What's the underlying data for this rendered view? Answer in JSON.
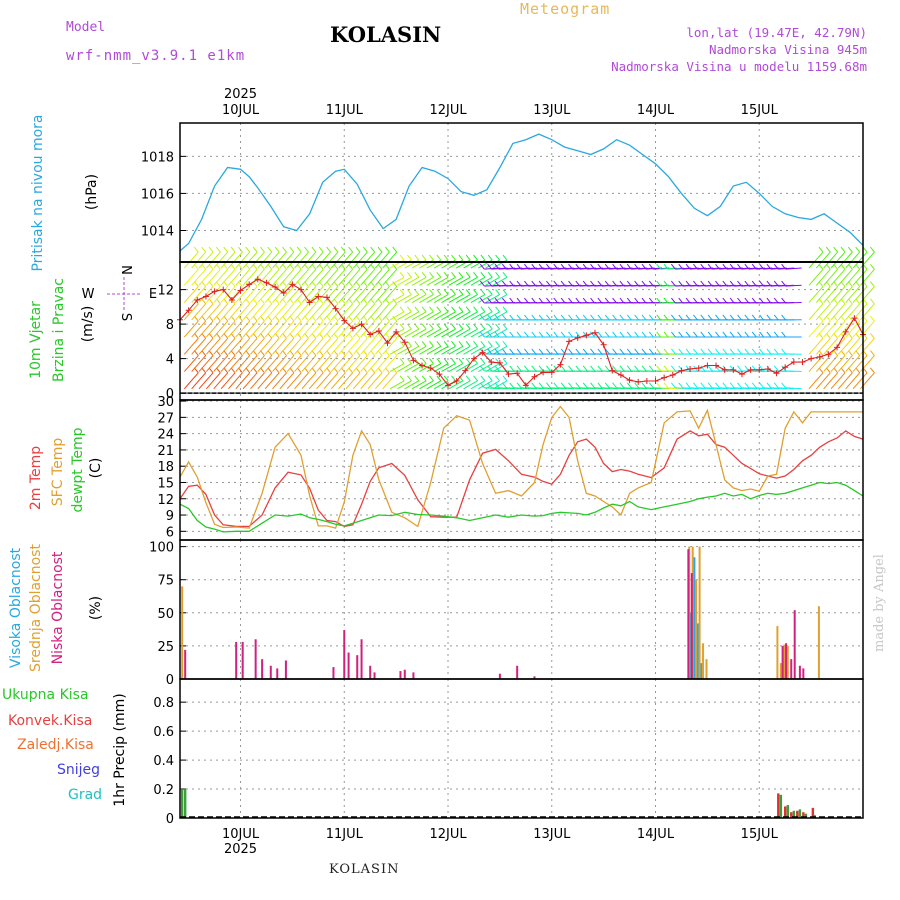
{
  "header": {
    "model_label": "Model",
    "model_name": "wrf-nmm_v3.9.1 e1km",
    "title": "KOLASIN",
    "meteogram": "Meteogram",
    "lonlat": "lon,lat (19.47E, 42.79N)",
    "altitude": "Nadmorska Visina 945m",
    "altitude_model": "Nadmorska Visina u modelu 1159.68m"
  },
  "footer": "KOLASIN",
  "watermark": "made by Angel",
  "time_axis": {
    "year": "2025",
    "days": [
      "10JUL",
      "11JUL",
      "12JUL",
      "13JUL",
      "14JUL",
      "15JUL"
    ],
    "start_hour_before_first_day": -14,
    "end_hour_after_first_day": 144
  },
  "colors": {
    "pressure": "#2aa8e0",
    "temp2m": "#e84040",
    "sfc_temp": "#e0a030",
    "dewpt": "#28c828",
    "wind_speed_line": "#e02020",
    "high_cloud": "#2aa8e0",
    "mid_cloud": "#e0a030",
    "low_cloud": "#d02080",
    "precip_total": "#3aa03a",
    "precip_conv": "#e03030",
    "grid": "#999999"
  },
  "chart_data": [
    {
      "type": "line",
      "panel": "pressure",
      "ylabel_parts": [
        "Pritisak na nivou mora"
      ],
      "unit": "(hPa)",
      "yticks": [
        1014,
        1016,
        1018
      ],
      "ylim": [
        1012.3,
        1019.8
      ],
      "series": [
        {
          "x": [
            -14,
            -12,
            -9,
            -6,
            -3,
            0,
            2,
            4,
            7,
            10,
            13,
            16,
            19,
            22,
            24,
            27,
            30,
            33,
            36,
            39,
            42,
            45,
            48,
            51,
            54,
            57,
            60,
            63,
            66,
            69,
            72,
            75,
            78,
            81,
            84,
            87,
            90,
            93,
            96,
            99,
            102,
            105,
            108,
            111,
            114,
            117,
            120,
            123,
            126,
            129,
            132,
            135,
            138,
            141,
            144
          ],
          "values": [
            1012.9,
            1013.3,
            1014.6,
            1016.4,
            1017.4,
            1017.3,
            1016.9,
            1016.3,
            1015.3,
            1014.2,
            1014.0,
            1014.9,
            1016.6,
            1017.2,
            1017.3,
            1016.5,
            1015.1,
            1014.1,
            1014.6,
            1016.4,
            1017.4,
            1017.2,
            1016.8,
            1016.1,
            1015.9,
            1016.2,
            1017.4,
            1018.7,
            1018.9,
            1019.2,
            1018.9,
            1018.5,
            1018.3,
            1018.1,
            1018.4,
            1018.9,
            1018.6,
            1018.1,
            1017.6,
            1016.9,
            1016.0,
            1015.2,
            1014.8,
            1015.3,
            1016.4,
            1016.6,
            1016.0,
            1015.3,
            1014.9,
            1014.7,
            1014.6,
            1014.9,
            1014.4,
            1013.9,
            1013.2
          ]
        }
      ]
    },
    {
      "type": "line",
      "panel": "wind",
      "ylabel_parts": [
        "10m Vjetar",
        "Brzina i Pravac"
      ],
      "unit": "(m/s)",
      "compass": [
        "N",
        "E",
        "W",
        "S"
      ],
      "yticks": [
        0,
        4,
        8,
        12
      ],
      "ylim": [
        -0.8,
        15.2
      ],
      "series": [
        {
          "name": "wind speed",
          "x": [
            -14,
            -12,
            -10,
            -8,
            -6,
            -4,
            -2,
            0,
            2,
            4,
            6,
            8,
            10,
            12,
            14,
            16,
            18,
            20,
            22,
            24,
            26,
            28,
            30,
            32,
            34,
            36,
            38,
            40,
            42,
            44,
            46,
            48,
            50,
            52,
            54,
            56,
            58,
            60,
            62,
            64,
            66,
            68,
            70,
            72,
            74,
            76,
            78,
            80,
            82,
            84,
            86,
            88,
            90,
            92,
            94,
            96,
            98,
            100,
            102,
            104,
            106,
            108,
            110,
            112,
            114,
            116,
            118,
            120,
            122,
            124,
            126,
            128,
            130,
            132,
            134,
            136,
            138,
            140,
            142,
            144
          ],
          "values": [
            8.5,
            9.6,
            10.8,
            11.2,
            11.8,
            12.0,
            10.8,
            11.9,
            12.6,
            13.2,
            12.8,
            12.3,
            11.6,
            12.6,
            12.0,
            10.5,
            11.2,
            11.1,
            9.8,
            8.4,
            7.5,
            8.0,
            6.8,
            7.2,
            5.8,
            7.1,
            5.9,
            3.8,
            3.2,
            2.9,
            2.2,
            0.9,
            1.4,
            2.6,
            4.0,
            4.7,
            3.6,
            3.5,
            2.2,
            2.3,
            0.9,
            1.9,
            2.4,
            2.4,
            3.3,
            6.0,
            6.4,
            6.7,
            7.0,
            5.6,
            2.6,
            2.1,
            1.5,
            1.3,
            1.4,
            1.4,
            1.8,
            2.1,
            2.6,
            2.8,
            2.9,
            3.2,
            3.2,
            2.7,
            2.7,
            2.2,
            2.7,
            2.7,
            2.8,
            2.3,
            3.0,
            3.6,
            3.6,
            4.0,
            4.2,
            4.5,
            5.3,
            7.1,
            8.7,
            6.8
          ]
        }
      ]
    },
    {
      "type": "line",
      "panel": "temperature",
      "ylabel_parts": [
        "2m Temp",
        "SFC Temp",
        "dewpt Temp"
      ],
      "unit": "(C)",
      "yticks": [
        6,
        9,
        12,
        15,
        18,
        21,
        24,
        27,
        30
      ],
      "ylim": [
        4.4,
        30.2
      ],
      "series": [
        {
          "name": "2m Temp",
          "x": [
            -14,
            -12,
            -10,
            -8,
            -6,
            -4,
            -1,
            2,
            5,
            8,
            11,
            14,
            16,
            18,
            20,
            22,
            24,
            26,
            28,
            30,
            32,
            35,
            38,
            41,
            44,
            47,
            50,
            53,
            56,
            59,
            62,
            65,
            68,
            70,
            72,
            74,
            76,
            78,
            80,
            82,
            84,
            86,
            88,
            90,
            92,
            95,
            98,
            101,
            104,
            106,
            108,
            110,
            112,
            114,
            116,
            118,
            120,
            122,
            124,
            126,
            128,
            130,
            132,
            134,
            136,
            138,
            140,
            142,
            144
          ],
          "values": [
            12.0,
            14.3,
            14.5,
            12.8,
            9.0,
            7.2,
            6.9,
            6.9,
            9.0,
            14.0,
            16.9,
            16.4,
            13.9,
            9.9,
            8.0,
            7.8,
            6.9,
            7.2,
            11.0,
            15.2,
            17.7,
            18.5,
            16.3,
            11.8,
            8.7,
            8.6,
            8.6,
            15.5,
            20.4,
            21.1,
            19.0,
            16.5,
            16.0,
            15.2,
            14.7,
            16.5,
            20.0,
            22.5,
            23.0,
            21.5,
            18.5,
            17.0,
            17.4,
            17.1,
            16.5,
            15.9,
            17.7,
            23.0,
            24.5,
            23.6,
            23.9,
            22.0,
            21.5,
            20.0,
            18.5,
            17.6,
            16.6,
            16.2,
            15.8,
            16.2,
            17.4,
            19.0,
            20.0,
            21.5,
            22.5,
            23.2,
            24.5,
            23.5,
            23.0
          ]
        },
        {
          "name": "SFC Temp",
          "x": [
            -14,
            -12,
            -10,
            -8,
            -6,
            -4,
            -1,
            2,
            5,
            8,
            11,
            14,
            16,
            18,
            20,
            22,
            24,
            26,
            28,
            30,
            32,
            35,
            38,
            41,
            44,
            47,
            50,
            53,
            56,
            59,
            62,
            65,
            68,
            70,
            72,
            74,
            76,
            78,
            80,
            82,
            84,
            86,
            88,
            90,
            92,
            95,
            98,
            101,
            104,
            106,
            108,
            110,
            112,
            114,
            116,
            118,
            120,
            122,
            124,
            126,
            128,
            130,
            132,
            134,
            136,
            138,
            140,
            142,
            144
          ],
          "values": [
            16.0,
            18.8,
            16.0,
            11.3,
            7.3,
            6.7,
            6.8,
            6.6,
            13.0,
            21.5,
            24.0,
            20.0,
            12.5,
            7.0,
            7.0,
            6.6,
            11.4,
            20.0,
            24.5,
            22.0,
            15.5,
            9.5,
            8.5,
            6.9,
            15.0,
            25.0,
            27.3,
            26.5,
            18.5,
            13.0,
            13.5,
            12.5,
            15.0,
            22.0,
            27.0,
            29.0,
            27.0,
            19.0,
            13.0,
            12.5,
            11.5,
            10.5,
            9.0,
            13.0,
            14.0,
            15.0,
            26.0,
            28.0,
            28.2,
            25.0,
            28.3,
            22.0,
            15.5,
            14.0,
            13.5,
            13.8,
            13.4,
            16.2,
            16.5,
            25.0,
            28.0,
            26.0,
            28.0,
            28.0,
            28.0,
            28.0,
            28.0,
            28.0,
            28.0
          ]
        },
        {
          "name": "dewpt Temp",
          "x": [
            -14,
            -12,
            -10,
            -8,
            -6,
            -4,
            -1,
            2,
            5,
            8,
            11,
            14,
            16,
            18,
            20,
            22,
            24,
            26,
            28,
            30,
            32,
            35,
            38,
            41,
            44,
            47,
            50,
            53,
            56,
            59,
            62,
            65,
            68,
            70,
            72,
            74,
            76,
            78,
            80,
            82,
            84,
            86,
            88,
            90,
            92,
            95,
            98,
            101,
            104,
            106,
            108,
            110,
            112,
            114,
            116,
            118,
            120,
            122,
            124,
            126,
            128,
            130,
            132,
            134,
            136,
            138,
            140,
            142,
            144
          ],
          "values": [
            11.0,
            10.2,
            8.0,
            6.8,
            6.4,
            5.9,
            6.0,
            6.0,
            7.5,
            9.0,
            8.8,
            9.2,
            8.5,
            8.2,
            7.8,
            7.3,
            7.0,
            7.5,
            8.0,
            8.5,
            9.0,
            8.9,
            9.5,
            9.1,
            9.0,
            8.8,
            8.5,
            8.0,
            8.5,
            9.0,
            8.6,
            9.0,
            8.8,
            8.9,
            9.3,
            9.5,
            9.4,
            9.3,
            9.0,
            9.5,
            10.3,
            11.0,
            10.7,
            11.5,
            10.5,
            10.0,
            10.5,
            11.0,
            11.5,
            12.0,
            12.3,
            12.5,
            13.0,
            12.5,
            12.8,
            12.0,
            12.6,
            13.0,
            12.8,
            13.0,
            13.5,
            14.0,
            14.5,
            15.0,
            14.8,
            15.0,
            14.5,
            13.5,
            12.5
          ]
        }
      ]
    },
    {
      "type": "bar",
      "panel": "cloud",
      "ylabel_parts": [
        "Visoka Oblacnost",
        "Srednja Oblacnost",
        "Niska Oblacnost"
      ],
      "unit": "(%)",
      "yticks": [
        0,
        25,
        50,
        75,
        100
      ],
      "ylim": [
        0,
        105
      ],
      "series": [
        {
          "name": "Visoka Oblacnost",
          "x": [
            104.2,
            105.0,
            105.8,
            106.6
          ],
          "values": [
            50,
            92,
            42,
            12
          ]
        },
        {
          "name": "Srednja Oblacnost",
          "x": [
            -13.5,
            103.8,
            104.6,
            105.4,
            106.2,
            107.0,
            107.8,
            124.2,
            125.0,
            125.8,
            126.6,
            133.8
          ],
          "values": [
            70,
            100,
            100,
            75,
            100,
            27,
            15,
            40,
            12,
            26,
            25,
            55
          ]
        },
        {
          "name": "Niska Oblacnost",
          "x": [
            -12.8,
            -1.0,
            0.5,
            3.5,
            5.0,
            7.0,
            8.5,
            10.5,
            21.5,
            24.0,
            25.0,
            27.0,
            28.0,
            30.0,
            31.0,
            37.0,
            38.0,
            40.0,
            60.0,
            64.0,
            68.0,
            103.6,
            104.4,
            125.4,
            126.2,
            127.4,
            128.2,
            129.4,
            130.2
          ],
          "values": [
            22,
            28,
            28,
            30,
            15,
            10,
            8,
            14,
            9,
            37,
            20,
            18,
            30,
            10,
            5,
            6,
            7,
            5,
            4,
            10,
            2,
            98,
            80,
            25,
            27,
            15,
            52,
            10,
            8
          ]
        }
      ]
    },
    {
      "type": "bar",
      "panel": "precip",
      "ylabel_parts": [
        "1hr Precip (mm)"
      ],
      "legend": [
        "Ukupna Kisa",
        "Konvek.Kisa",
        "Zaledj.Kisa",
        "Snijeg",
        "Grad"
      ],
      "yticks": [
        0,
        0.2,
        0.4,
        0.6,
        0.8
      ],
      "ylim": [
        0,
        0.96
      ],
      "series": [
        {
          "name": "Ukupna Kisa",
          "x": [
            -13.5,
            -12.8,
            125.0,
            126.6,
            128.0,
            129.4,
            130.8,
            132.8
          ],
          "values": [
            0.2,
            0.2,
            0.16,
            0.09,
            0.05,
            0.06,
            0.03,
            0.02
          ]
        },
        {
          "name": "Konvek.Kisa",
          "x": [
            124.4,
            126.0,
            127.4,
            128.8,
            130.2,
            132.4
          ],
          "values": [
            0.17,
            0.08,
            0.04,
            0.05,
            0.04,
            0.07
          ]
        }
      ]
    }
  ]
}
